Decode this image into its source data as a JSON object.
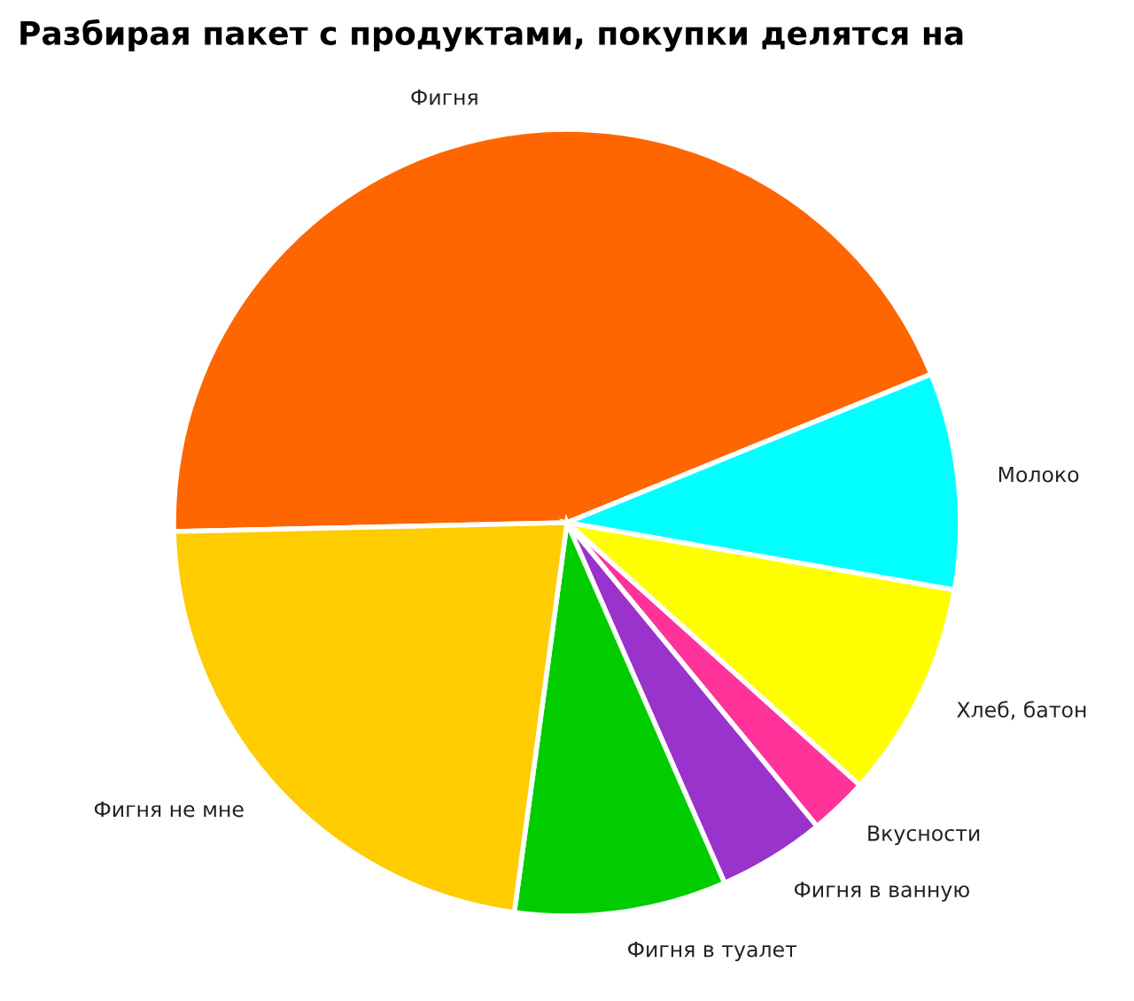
{
  "chart_data": {
    "type": "pie",
    "title": "Разбирая пакет с продуктами, покупки делятся на",
    "categories": [
      "Фигня",
      "Молоко",
      "Хлеб, батон",
      "Вкусности",
      "Фигня в ванную",
      "Фигня в туалет",
      "Фигня не мне"
    ],
    "values": [
      44.2,
      8.9,
      8.9,
      2.4,
      4.4,
      8.7,
      22.5
    ],
    "colors": [
      "#ff6600",
      "#00ffff",
      "#ffff00",
      "#ff3399",
      "#9933cc",
      "#00cc00",
      "#ffcc00"
    ]
  }
}
